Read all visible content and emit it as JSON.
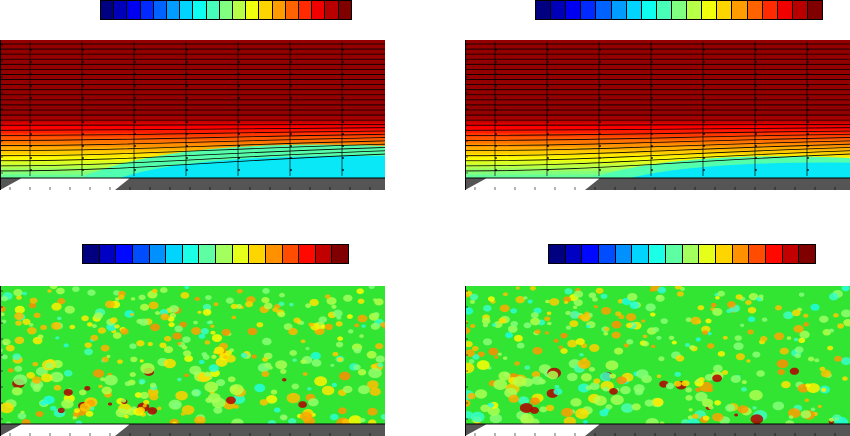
{
  "figure": {
    "panels": [
      {
        "id": "top-left",
        "kind": "streamlines",
        "colorbar_cells": 19,
        "scheme": "jet"
      },
      {
        "id": "top-right",
        "kind": "streamlines",
        "colorbar_cells": 19,
        "scheme": "jet"
      },
      {
        "id": "bottom-left",
        "kind": "fluctuation",
        "colorbar_cells": 16,
        "scheme": "jet"
      },
      {
        "id": "bottom-right",
        "kind": "fluctuation",
        "colorbar_cells": 16,
        "scheme": "jet"
      }
    ],
    "colors": {
      "wall": "#555555",
      "streamline": "#000000",
      "background_field": "#33e533"
    }
  }
}
